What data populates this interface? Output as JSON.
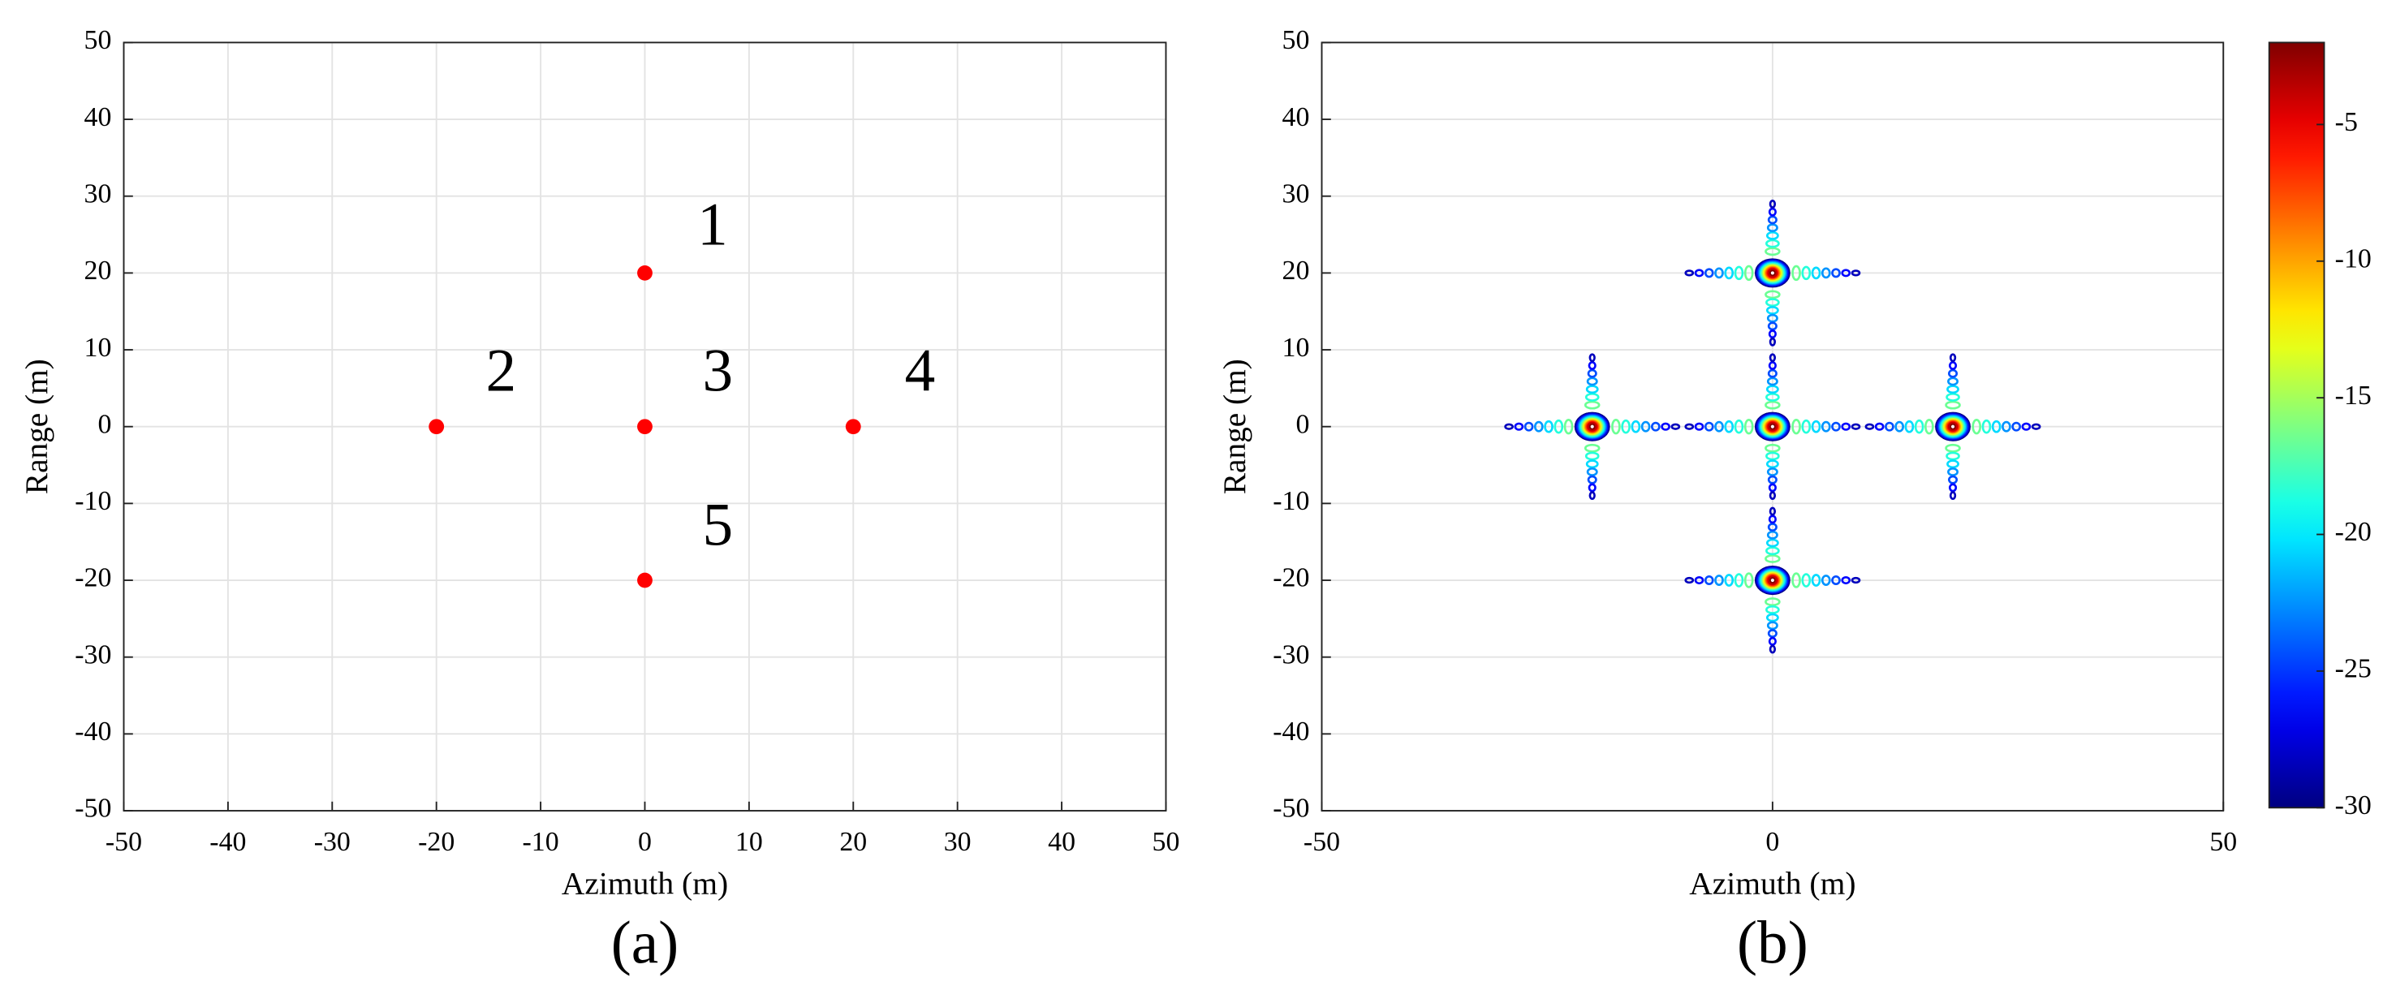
{
  "chart_data": [
    {
      "type": "scatter",
      "caption": "(a)",
      "xlabel": "Azimuth (m)",
      "ylabel": "Range (m)",
      "x": [
        0,
        -20,
        0,
        20,
        0
      ],
      "y": [
        20,
        0,
        0,
        0,
        -20
      ],
      "color": "#ff0000",
      "annotations": [
        {
          "text": "1",
          "x": 6.5,
          "y": 25.5
        },
        {
          "text": "2",
          "x": -13.8,
          "y": 6.5
        },
        {
          "text": "3",
          "x": 7,
          "y": 6.5
        },
        {
          "text": "4",
          "x": 26.4,
          "y": 6.5
        },
        {
          "text": "5",
          "x": 7,
          "y": -13.6
        }
      ],
      "xlim": [
        -50,
        50
      ],
      "xticks": [
        -50,
        -40,
        -30,
        -20,
        -10,
        0,
        10,
        20,
        30,
        40,
        50
      ],
      "ylim": [
        -50,
        50
      ],
      "yticks": [
        -50,
        -40,
        -30,
        -20,
        -10,
        0,
        10,
        20,
        30,
        40,
        50
      ],
      "grid": true
    },
    {
      "type": "contour",
      "caption": "(b)",
      "xlabel": "Azimuth (m)",
      "ylabel": "Range (m)",
      "x": [
        0,
        -20,
        0,
        20,
        0
      ],
      "y": [
        20,
        0,
        0,
        0,
        -20
      ],
      "xlim": [
        -50,
        50
      ],
      "xticks": [
        -50,
        0,
        50
      ],
      "ylim": [
        -50,
        50
      ],
      "yticks": [
        -50,
        -40,
        -30,
        -20,
        -10,
        0,
        10,
        20,
        30,
        40,
        50
      ],
      "grid": true,
      "colormap": "jet",
      "clim": [
        -30,
        -2
      ],
      "cticks": [
        -30,
        -25,
        -20,
        -15,
        -10,
        -5
      ]
    }
  ]
}
